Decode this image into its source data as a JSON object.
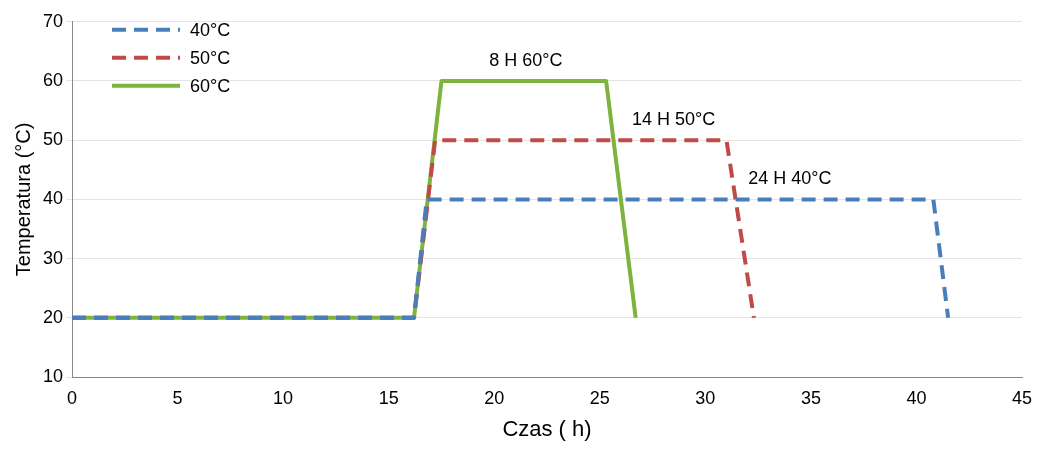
{
  "chart_data": {
    "type": "line",
    "xlabel": "Czas ( h)",
    "ylabel": "Temperatura (°C)",
    "xlim": [
      0,
      45
    ],
    "xticks": [
      0,
      5,
      10,
      15,
      20,
      25,
      30,
      35,
      40,
      45
    ],
    "ylim": [
      10,
      70
    ],
    "yticks": [
      10,
      20,
      30,
      40,
      50,
      60,
      70
    ],
    "grid": "y",
    "legend": "top left",
    "marker": "none",
    "series": [
      {
        "name": "40°C",
        "color": "#4a7ebb",
        "line_style": "dashed",
        "x": [
          0,
          16.2,
          16.8,
          40.8,
          41.5
        ],
        "values": [
          20,
          20,
          40,
          40,
          20
        ]
      },
      {
        "name": "50°C",
        "color": "#be4b48",
        "line_style": "dashed",
        "x": [
          0,
          16.2,
          17.2,
          31.0,
          32.3
        ],
        "values": [
          20,
          20,
          50,
          50,
          20
        ]
      },
      {
        "name": "60°C",
        "color": "#7eb33e",
        "line_style": "solid",
        "x": [
          0,
          16.2,
          17.5,
          25.3,
          26.7
        ],
        "values": [
          20,
          20,
          60,
          60,
          20
        ]
      }
    ],
    "annotations": [
      {
        "text": "8 H 60°C",
        "x": 21.5,
        "y": 60
      },
      {
        "text": "14 H 50°C",
        "x": 28.5,
        "y": 50
      },
      {
        "text": "24 H 40°C",
        "x": 34,
        "y": 40
      }
    ]
  }
}
